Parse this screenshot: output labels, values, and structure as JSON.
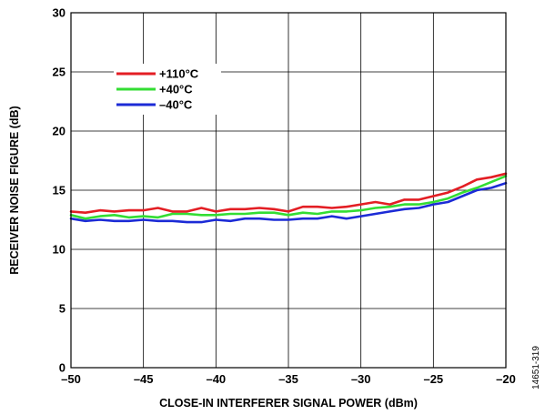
{
  "chart_data": {
    "type": "line",
    "title": "",
    "xlabel": "CLOSE-IN INTERFERER SIGNAL POWER (dBm)",
    "ylabel": "RECEIVER NOISE FIGURE (dB)",
    "xlim": [
      -50,
      -20
    ],
    "ylim": [
      0,
      30
    ],
    "x_ticks": [
      -50,
      -45,
      -40,
      -35,
      -30,
      -25,
      -20
    ],
    "x_tick_labels": [
      "–50",
      "–45",
      "–40",
      "–35",
      "–30",
      "–25",
      "–20"
    ],
    "y_ticks": [
      0,
      5,
      10,
      15,
      20,
      25,
      30
    ],
    "y_tick_labels": [
      "0",
      "5",
      "10",
      "15",
      "20",
      "25",
      "30"
    ],
    "grid": true,
    "legend_position": "top-left",
    "x": [
      -50,
      -49,
      -48,
      -47,
      -46,
      -45,
      -44,
      -43,
      -42,
      -41,
      -40,
      -39,
      -38,
      -37,
      -36,
      -35,
      -34,
      -33,
      -32,
      -31,
      -30,
      -29,
      -28,
      -27,
      -26,
      -25,
      -24,
      -23,
      -22,
      -21,
      -20
    ],
    "series": [
      {
        "name": "+110°C",
        "color": "#e31e24",
        "values": [
          13.2,
          13.1,
          13.3,
          13.2,
          13.3,
          13.3,
          13.5,
          13.2,
          13.2,
          13.5,
          13.2,
          13.4,
          13.4,
          13.5,
          13.4,
          13.2,
          13.6,
          13.6,
          13.5,
          13.6,
          13.8,
          14.0,
          13.8,
          14.2,
          14.2,
          14.5,
          14.8,
          15.3,
          15.9,
          16.1,
          16.4
        ]
      },
      {
        "name": "+40°C",
        "color": "#33dd33",
        "values": [
          12.9,
          12.6,
          12.8,
          12.9,
          12.7,
          12.8,
          12.7,
          13.0,
          13.0,
          12.9,
          12.9,
          13.0,
          13.0,
          13.1,
          13.1,
          12.9,
          13.1,
          13.0,
          13.2,
          13.2,
          13.3,
          13.5,
          13.6,
          13.8,
          13.8,
          14.0,
          14.3,
          14.8,
          15.2,
          15.7,
          16.2
        ]
      },
      {
        "name": "–40°C",
        "color": "#1c2bd6",
        "values": [
          12.6,
          12.4,
          12.5,
          12.4,
          12.4,
          12.5,
          12.4,
          12.4,
          12.3,
          12.3,
          12.5,
          12.4,
          12.6,
          12.6,
          12.5,
          12.5,
          12.6,
          12.6,
          12.8,
          12.6,
          12.8,
          13.0,
          13.2,
          13.4,
          13.5,
          13.8,
          14.0,
          14.5,
          15.0,
          15.2,
          15.6
        ]
      }
    ]
  },
  "figure_id": "14651-319"
}
